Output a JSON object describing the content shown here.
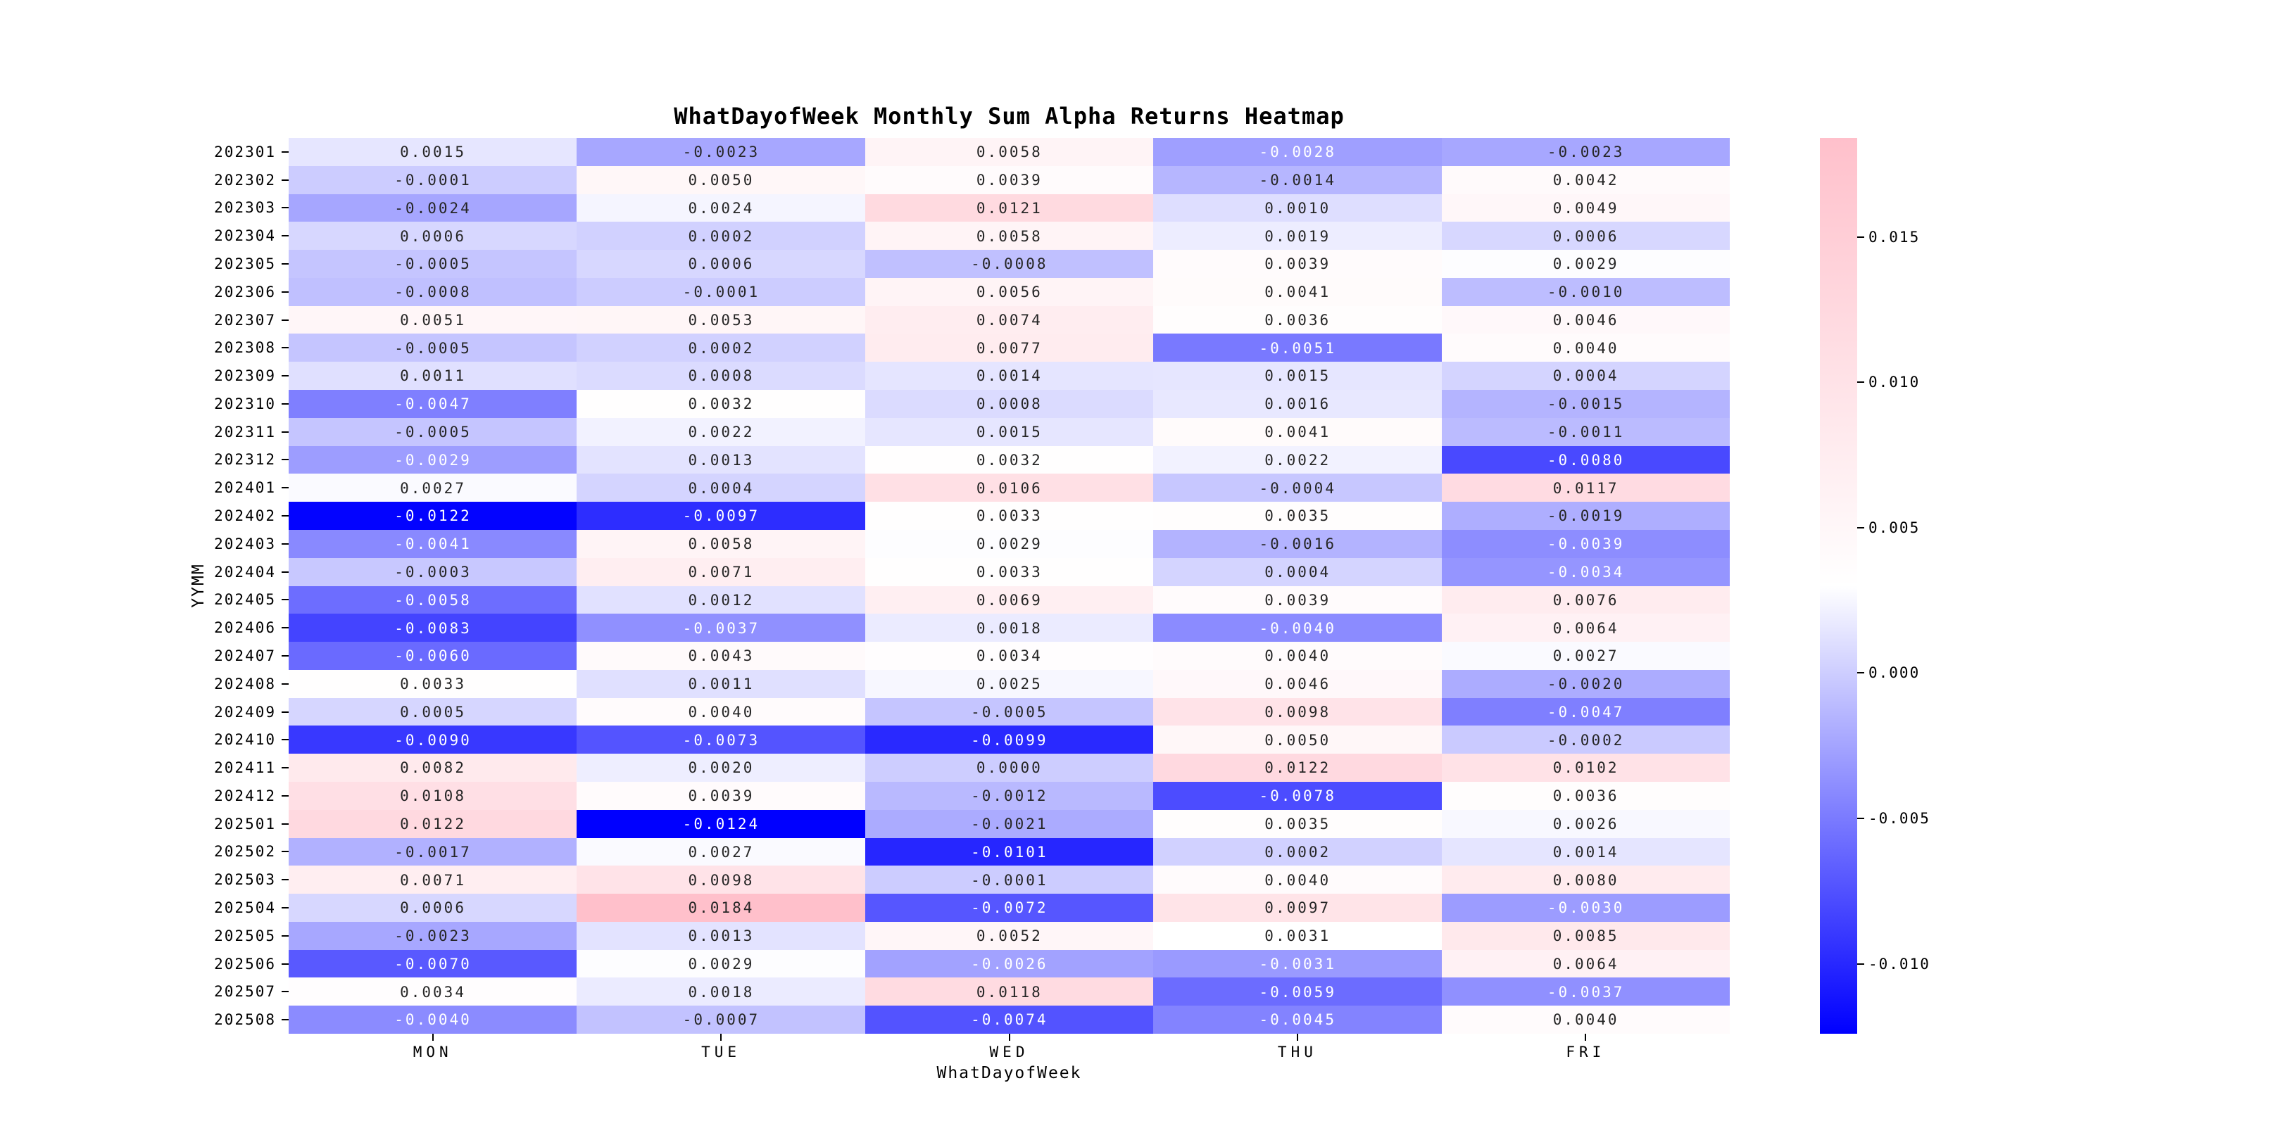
{
  "figure": {
    "background": "#ffffff"
  },
  "chart_data": {
    "type": "heatmap",
    "title": "WhatDayofWeek Monthly Sum Alpha Returns Heatmap",
    "xlabel": "WhatDayofWeek",
    "ylabel": "YYMM",
    "columns": [
      "MON",
      "TUE",
      "WED",
      "THU",
      "FRI"
    ],
    "rows": [
      "202301",
      "202302",
      "202303",
      "202304",
      "202305",
      "202306",
      "202307",
      "202308",
      "202309",
      "202310",
      "202311",
      "202312",
      "202401",
      "202402",
      "202403",
      "202404",
      "202405",
      "202406",
      "202407",
      "202408",
      "202409",
      "202410",
      "202411",
      "202412",
      "202501",
      "202502",
      "202503",
      "202504",
      "202505",
      "202506",
      "202507",
      "202508"
    ],
    "values": [
      [
        0.0015,
        -0.0023,
        0.0058,
        -0.0028,
        -0.0023
      ],
      [
        -0.0001,
        0.005,
        0.0039,
        -0.0014,
        0.0042
      ],
      [
        -0.0024,
        0.0024,
        0.0121,
        0.001,
        0.0049
      ],
      [
        0.0006,
        0.0002,
        0.0058,
        0.0019,
        0.0006
      ],
      [
        -0.0005,
        0.0006,
        -0.0008,
        0.0039,
        0.0029
      ],
      [
        -0.0008,
        -0.0001,
        0.0056,
        0.0041,
        -0.001
      ],
      [
        0.0051,
        0.0053,
        0.0074,
        0.0036,
        0.0046
      ],
      [
        -0.0005,
        0.0002,
        0.0077,
        -0.0051,
        0.004
      ],
      [
        0.0011,
        0.0008,
        0.0014,
        0.0015,
        0.0004
      ],
      [
        -0.0047,
        0.0032,
        0.0008,
        0.0016,
        -0.0015
      ],
      [
        -0.0005,
        0.0022,
        0.0015,
        0.0041,
        -0.0011
      ],
      [
        -0.0029,
        0.0013,
        0.0032,
        0.0022,
        -0.008
      ],
      [
        0.0027,
        0.0004,
        0.0106,
        -0.0004,
        0.0117
      ],
      [
        -0.0122,
        -0.0097,
        0.0033,
        0.0035,
        -0.0019
      ],
      [
        -0.0041,
        0.0058,
        0.0029,
        -0.0016,
        -0.0039
      ],
      [
        -0.0003,
        0.0071,
        0.0033,
        0.0004,
        -0.0034
      ],
      [
        -0.0058,
        0.0012,
        0.0069,
        0.0039,
        0.0076
      ],
      [
        -0.0083,
        -0.0037,
        0.0018,
        -0.004,
        0.0064
      ],
      [
        -0.006,
        0.0043,
        0.0034,
        0.004,
        0.0027
      ],
      [
        0.0033,
        0.0011,
        0.0025,
        0.0046,
        -0.002
      ],
      [
        0.0005,
        0.004,
        -0.0005,
        0.0098,
        -0.0047
      ],
      [
        -0.009,
        -0.0073,
        -0.0099,
        0.005,
        -0.0002
      ],
      [
        0.0082,
        0.002,
        0.0,
        0.0122,
        0.0102
      ],
      [
        0.0108,
        0.0039,
        -0.0012,
        -0.0078,
        0.0036
      ],
      [
        0.0122,
        -0.0124,
        -0.0021,
        0.0035,
        0.0026
      ],
      [
        -0.0017,
        0.0027,
        -0.0101,
        0.0002,
        0.0014
      ],
      [
        0.0071,
        0.0098,
        -0.0001,
        0.004,
        0.008
      ],
      [
        0.0006,
        0.0184,
        -0.0072,
        0.0097,
        -0.003
      ],
      [
        -0.0023,
        0.0013,
        0.0052,
        0.0031,
        0.0085
      ],
      [
        -0.007,
        0.0029,
        -0.0026,
        -0.0031,
        0.0064
      ],
      [
        0.0034,
        0.0018,
        0.0118,
        -0.0059,
        -0.0037
      ],
      [
        -0.004,
        -0.0007,
        -0.0074,
        -0.0045,
        0.004
      ]
    ],
    "vmin": -0.0124,
    "vmax": 0.0184,
    "value_format": "0.0000",
    "colormap": {
      "low": "#0000ff",
      "mid": "#ffffff",
      "high": "#ffc0cb"
    },
    "annotation_colors": {
      "dark": "#262626",
      "light": "#ffffff"
    },
    "colorbar_ticks": [
      "0.015",
      "0.010",
      "0.005",
      "0.000",
      "-0.005",
      "-0.010"
    ],
    "legend_position": "right",
    "grid": false
  }
}
